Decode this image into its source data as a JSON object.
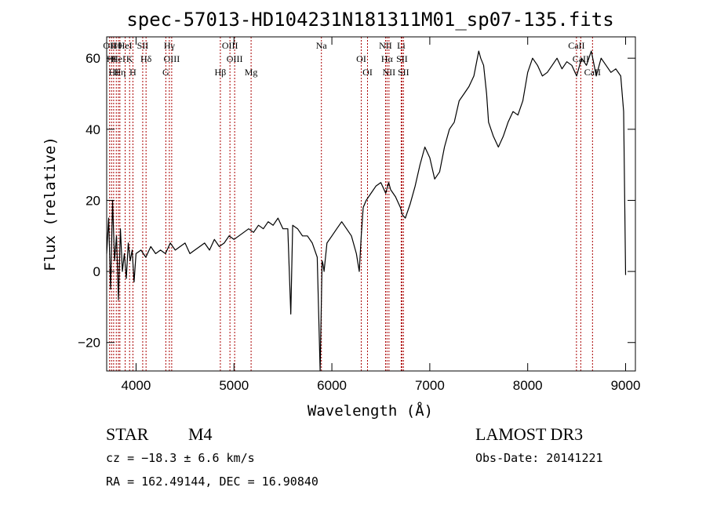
{
  "chart_data": {
    "type": "line",
    "title": "spec-57013-HD104231N181311M01_sp07-135.fits",
    "xlabel": "Wavelength (Å)",
    "ylabel": "Flux (relative)",
    "xlim": [
      3700,
      9100
    ],
    "ylim": [
      -28,
      66
    ],
    "x_ticks": [
      4000,
      5000,
      6000,
      7000,
      8000,
      9000
    ],
    "y_ticks": [
      -20,
      0,
      20,
      40,
      60
    ],
    "grid": false,
    "legend": "none",
    "line_color": "#000000",
    "marker_color": "#aa0000",
    "series": [
      {
        "x": [
          3700,
          3720,
          3740,
          3760,
          3780,
          3800,
          3820,
          3840,
          3860,
          3880,
          3900,
          3920,
          3940,
          3960,
          3980,
          4000,
          4050,
          4100,
          4150,
          4200,
          4250,
          4300,
          4350,
          4400,
          4450,
          4500,
          4550,
          4600,
          4650,
          4700,
          4750,
          4800,
          4850,
          4900,
          4950,
          5000,
          5050,
          5100,
          5150,
          5200,
          5250,
          5300,
          5350,
          5400,
          5450,
          5500,
          5550,
          5580,
          5600,
          5650,
          5700,
          5750,
          5800,
          5850,
          5880,
          5900,
          5910,
          5920,
          5950,
          6000,
          6050,
          6100,
          6150,
          6200,
          6250,
          6280,
          6300,
          6320,
          6350,
          6400,
          6450,
          6500,
          6550,
          6580,
          6600,
          6650,
          6700,
          6720,
          6750,
          6800,
          6850,
          6900,
          6950,
          7000,
          7050,
          7100,
          7150,
          7200,
          7250,
          7300,
          7350,
          7400,
          7450,
          7500,
          7520,
          7550,
          7580,
          7600,
          7650,
          7700,
          7750,
          7800,
          7850,
          7900,
          7950,
          8000,
          8050,
          8100,
          8150,
          8200,
          8250,
          8300,
          8350,
          8400,
          8450,
          8500,
          8550,
          8600,
          8650,
          8700,
          8750,
          8800,
          8850,
          8900,
          8950,
          8980,
          9000
        ],
        "y": [
          5,
          15,
          -5,
          20,
          3,
          10,
          -8,
          12,
          0,
          5,
          -2,
          8,
          3,
          6,
          -3,
          5,
          6,
          4,
          7,
          5,
          6,
          5,
          8,
          6,
          7,
          8,
          5,
          6,
          7,
          8,
          6,
          9,
          7,
          8,
          10,
          9,
          10,
          11,
          12,
          11,
          13,
          12,
          14,
          13,
          15,
          12,
          12,
          -12,
          13,
          12,
          10,
          10,
          8,
          4,
          -28,
          3,
          2,
          0,
          8,
          10,
          12,
          14,
          12,
          10,
          5,
          0,
          10,
          18,
          20,
          22,
          24,
          25,
          22,
          25,
          23,
          21,
          18,
          16,
          15,
          19,
          24,
          30,
          35,
          32,
          26,
          28,
          35,
          40,
          42,
          48,
          50,
          52,
          55,
          62,
          60,
          58,
          50,
          42,
          38,
          35,
          38,
          42,
          45,
          44,
          48,
          56,
          60,
          58,
          55,
          56,
          58,
          60,
          57,
          59,
          58,
          55,
          60,
          58,
          62,
          55,
          60,
          58,
          56,
          57,
          55,
          45,
          -1
        ]
      }
    ],
    "markers": [
      {
        "wavelength": 3730,
        "label": "OII"
      },
      {
        "wavelength": 3750,
        "label": "HI"
      },
      {
        "wavelength": 3771,
        "label": "HI"
      },
      {
        "wavelength": 3798,
        "label": "Hθ"
      },
      {
        "wavelength": 3820,
        "label": "HeI"
      },
      {
        "wavelength": 3835,
        "label": "Hη"
      },
      {
        "wavelength": 3889,
        "label": "HeI"
      },
      {
        "wavelength": 3934,
        "label": "K"
      },
      {
        "wavelength": 3968,
        "label": "H"
      },
      {
        "wavelength": 4068,
        "label": "SII"
      },
      {
        "wavelength": 4102,
        "label": "Hδ"
      },
      {
        "wavelength": 4304,
        "label": "G"
      },
      {
        "wavelength": 4340,
        "label": "Hγ"
      },
      {
        "wavelength": 4364,
        "label": "OIII"
      },
      {
        "wavelength": 4861,
        "label": "Hβ"
      },
      {
        "wavelength": 4959,
        "label": "OIII"
      },
      {
        "wavelength": 5007,
        "label": "OIII"
      },
      {
        "wavelength": 5175,
        "label": "Mg"
      },
      {
        "wavelength": 5893,
        "label": "Na"
      },
      {
        "wavelength": 6300,
        "label": "OI"
      },
      {
        "wavelength": 6364,
        "label": "OI"
      },
      {
        "wavelength": 6548,
        "label": "NII"
      },
      {
        "wavelength": 6563,
        "label": "Hα"
      },
      {
        "wavelength": 6583,
        "label": "NII"
      },
      {
        "wavelength": 6708,
        "label": "Li"
      },
      {
        "wavelength": 6716,
        "label": "SII"
      },
      {
        "wavelength": 6731,
        "label": "SII"
      },
      {
        "wavelength": 8498,
        "label": "CaII"
      },
      {
        "wavelength": 8542,
        "label": "CaII"
      },
      {
        "wavelength": 8662,
        "label": "CaII"
      }
    ]
  },
  "info": {
    "object_class": "STAR",
    "subclass": "M4",
    "survey": "LAMOST DR3",
    "redshift": "cz = −18.3 ± 6.6 km/s",
    "obs_date": "Obs-Date: 20141221",
    "coords": "RA = 162.49144, DEC =  16.90840"
  }
}
